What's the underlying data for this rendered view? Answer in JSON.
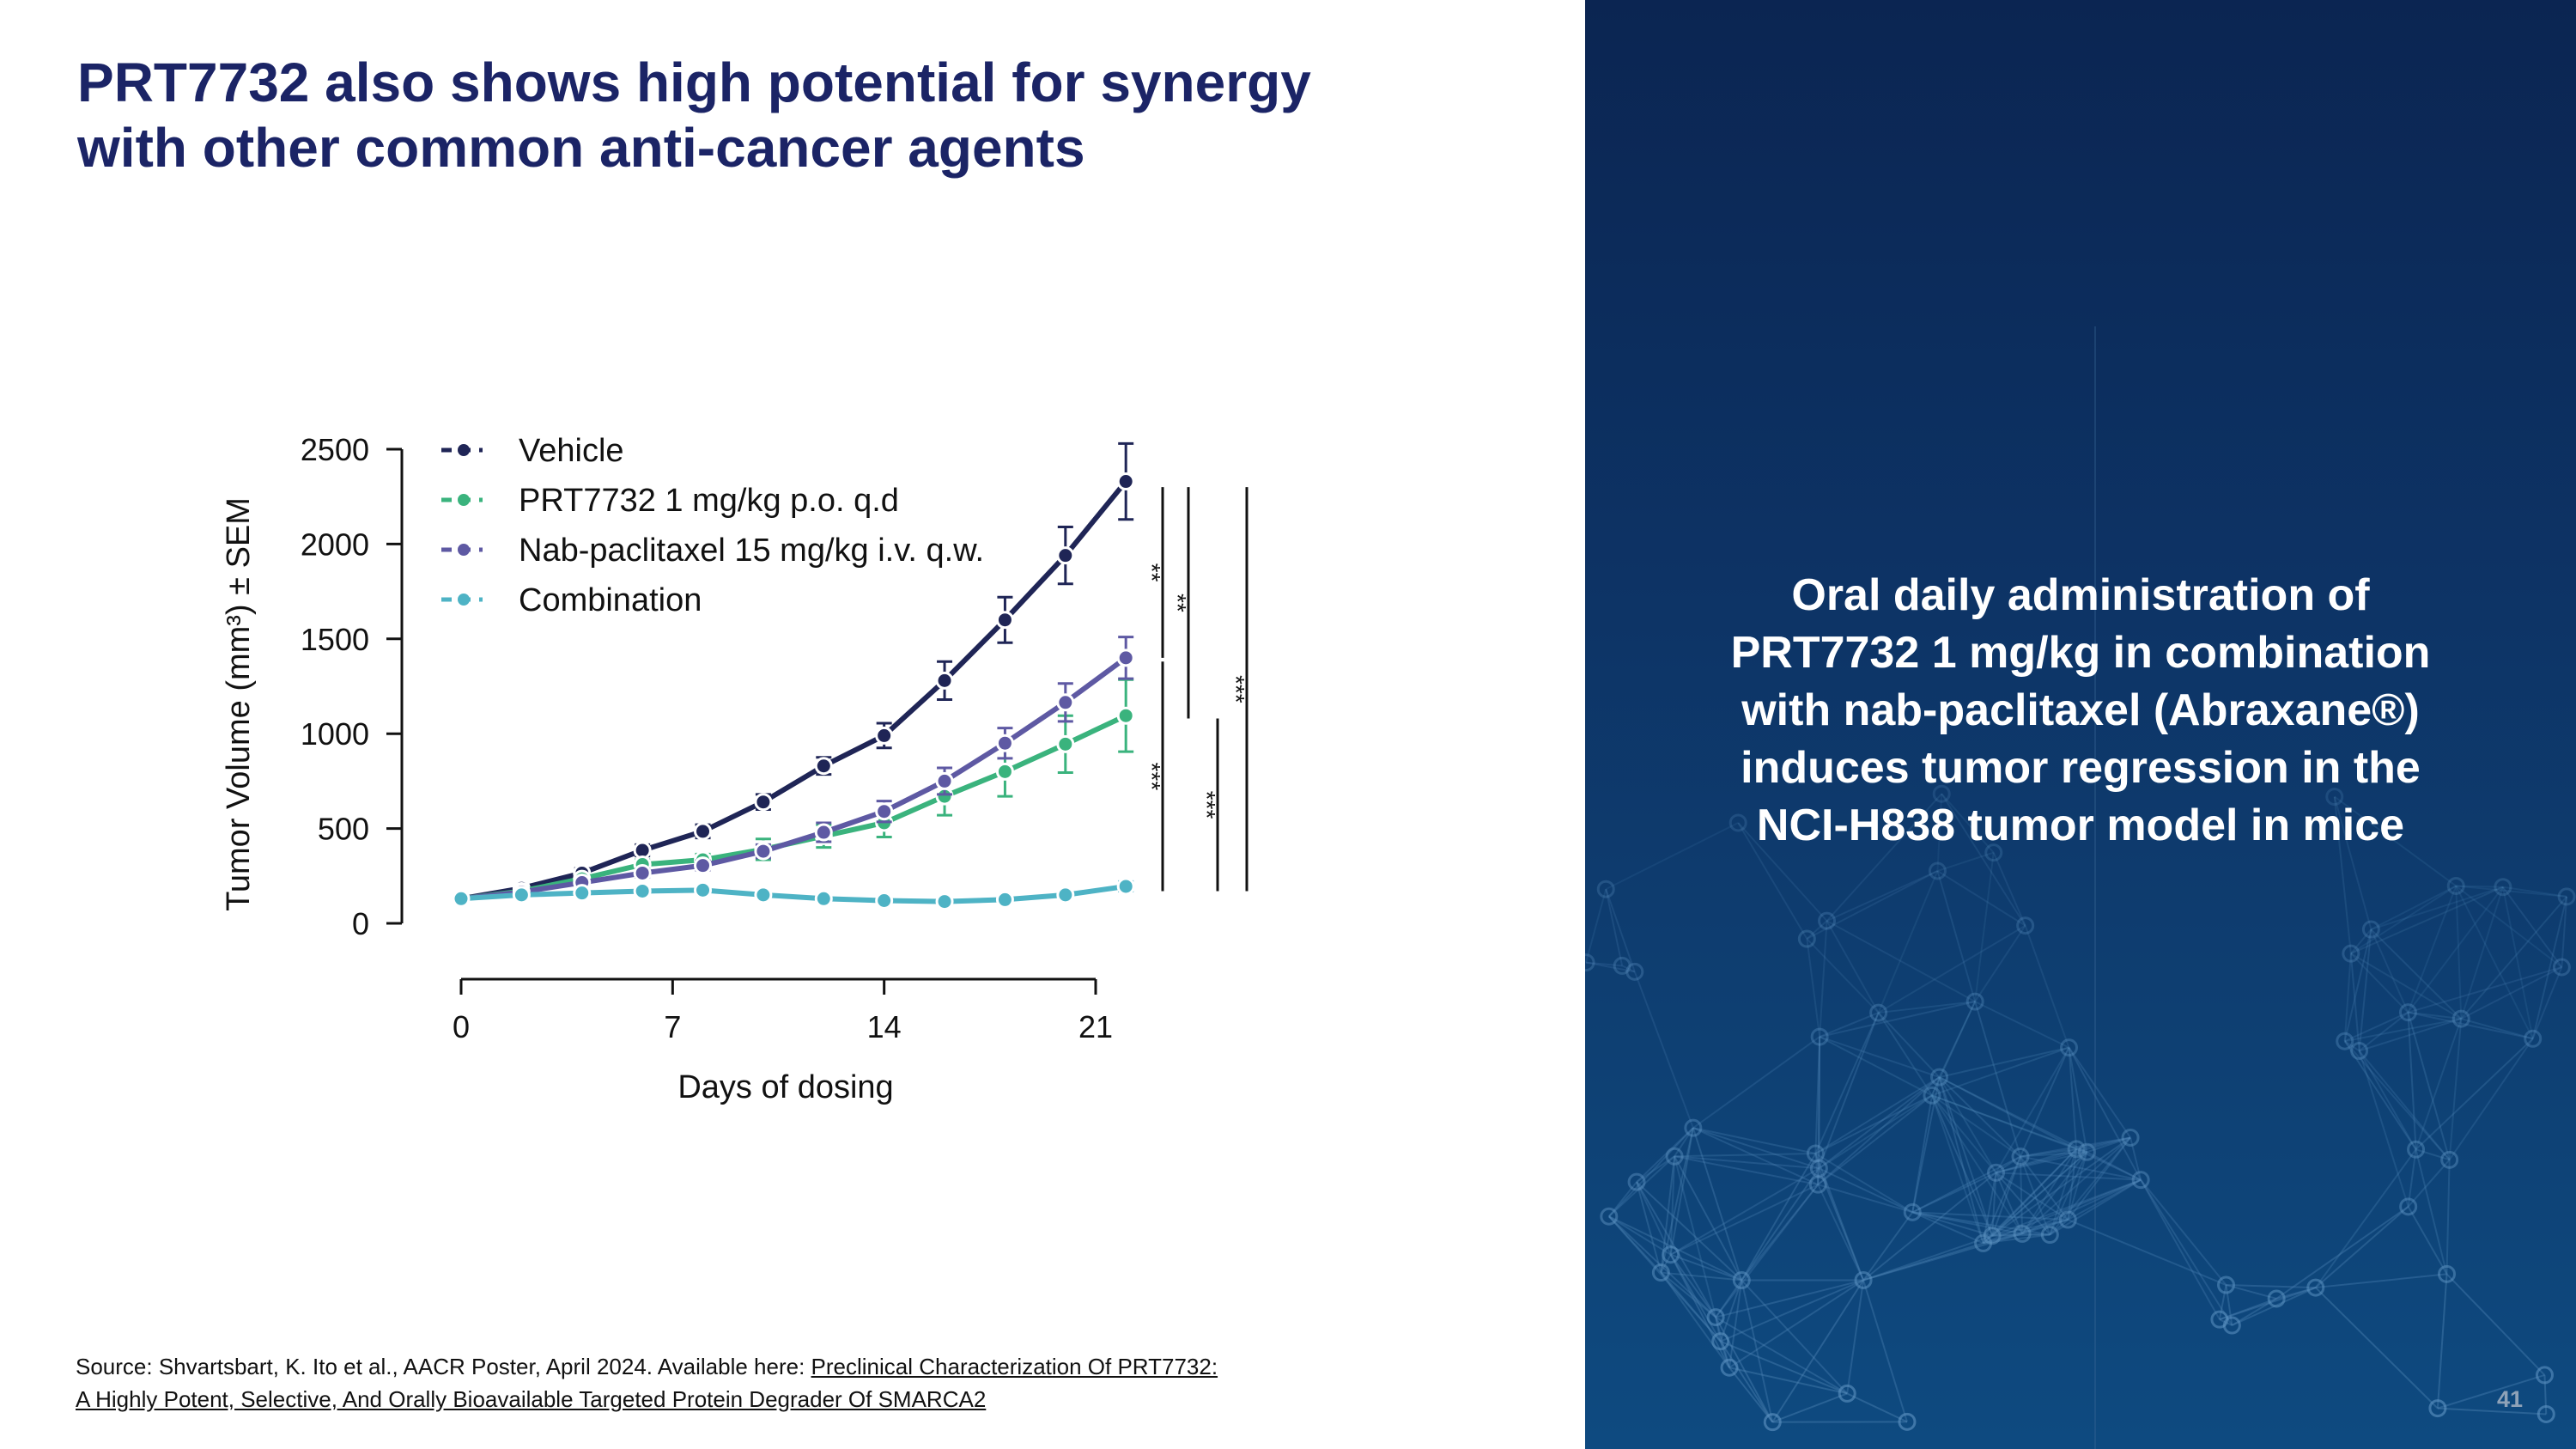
{
  "slide": {
    "title_line1": "PRT7732 also shows high potential for synergy",
    "title_line2": "with other common anti-cancer agents",
    "page_number": "41"
  },
  "panel": {
    "lines": [
      "Oral daily administration of",
      "PRT7732 1 mg/kg in combination",
      "with nab-paclitaxel (Abraxane®)",
      "induces tumor regression in the",
      "NCI-H838 tumor model in mice"
    ],
    "colors": {
      "top": "#0b2552",
      "bottom": "#0e4a80"
    }
  },
  "source": {
    "prefix": "Source:  Shvartsbart, K. Ito et al., AACR Poster, April 2024. Available here: ",
    "link_line1": "Preclinical Characterization Of PRT7732:",
    "link_line2": "A Highly Potent, Selective, And Orally Bioavailable Targeted Protein Degrader Of SMARCA2"
  },
  "chart_data": {
    "type": "line",
    "title": "",
    "xlabel": "Days of dosing",
    "ylabel": "Tumor Volume (mm³) ± SEM",
    "xlim": [
      0,
      22
    ],
    "ylim": [
      0,
      2500
    ],
    "xticks": [
      0,
      7,
      14,
      21
    ],
    "yticks": [
      0,
      500,
      1000,
      1500,
      2000,
      2500
    ],
    "x": [
      0,
      2,
      4,
      6,
      8,
      10,
      12,
      14,
      16,
      18,
      20,
      22
    ],
    "legend_position": "top-left",
    "series": [
      {
        "name": "Vehicle",
        "color": "#1f2556",
        "values": [
          130,
          185,
          265,
          385,
          485,
          640,
          830,
          990,
          1280,
          1600,
          1940,
          2330
        ],
        "errors": [
          10,
          15,
          25,
          30,
          35,
          40,
          45,
          65,
          100,
          120,
          150,
          200
        ]
      },
      {
        "name": "PRT7732 1 mg/kg p.o. q.d",
        "color": "#3ab37d",
        "values": [
          130,
          170,
          235,
          310,
          335,
          390,
          460,
          530,
          670,
          800,
          945,
          1095
        ],
        "errors": [
          10,
          15,
          20,
          25,
          30,
          55,
          60,
          75,
          100,
          130,
          150,
          190
        ]
      },
      {
        "name": "Nab-paclitaxel 15 mg/kg i.v. q.w.",
        "color": "#5e59a3",
        "values": [
          130,
          165,
          215,
          265,
          305,
          380,
          480,
          590,
          750,
          950,
          1165,
          1400
        ],
        "errors": [
          10,
          12,
          18,
          22,
          25,
          35,
          50,
          55,
          70,
          80,
          100,
          110
        ]
      },
      {
        "name": "Combination",
        "color": "#4eb3c5",
        "values": [
          130,
          150,
          160,
          170,
          175,
          150,
          130,
          120,
          115,
          125,
          150,
          195
        ],
        "errors": [
          8,
          8,
          10,
          10,
          12,
          10,
          10,
          10,
          10,
          12,
          15,
          25
        ]
      }
    ],
    "significance": [
      {
        "label": "**",
        "from": 1400,
        "to": 2300
      },
      {
        "label": "**",
        "from": 1080,
        "to": 2300
      },
      {
        "label": "***",
        "from": 1380,
        "to": 170
      },
      {
        "label": "***",
        "from": 1080,
        "to": 170
      },
      {
        "label": "***",
        "from": 2300,
        "to": 170
      }
    ]
  }
}
